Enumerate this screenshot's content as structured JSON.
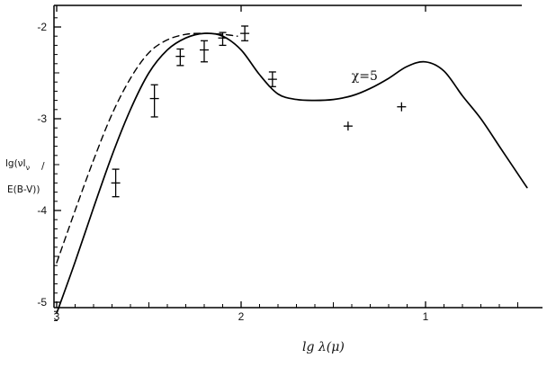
{
  "chart_data": {
    "type": "line",
    "title": "",
    "xlabel": "lg λ(μ)",
    "ylabel_lines": [
      "lg(νI",
      "/",
      "E(B-V))"
    ],
    "ylabel_subscript": "ν",
    "xlim": [
      3.0,
      0.45
    ],
    "ylim": [
      -5.2,
      -1.8
    ],
    "x_ticks": [
      3,
      2,
      1
    ],
    "y_ticks": [
      -2,
      -3,
      -4,
      -5
    ],
    "grid": false,
    "legend": "none",
    "annotation": {
      "text": "χ=5",
      "x": 1.33,
      "y": -2.58
    },
    "series": [
      {
        "style": "solid",
        "x": [
          3.0,
          2.9,
          2.8,
          2.7,
          2.6,
          2.5,
          2.4,
          2.3,
          2.2,
          2.1,
          2.0,
          1.9,
          1.8,
          1.7,
          1.6,
          1.5,
          1.4,
          1.3,
          1.2,
          1.1,
          1.0,
          0.9,
          0.8,
          0.7,
          0.6,
          0.5,
          0.45
        ],
        "y": [
          -5.12,
          -4.56,
          -3.97,
          -3.4,
          -2.9,
          -2.5,
          -2.25,
          -2.12,
          -2.07,
          -2.1,
          -2.25,
          -2.52,
          -2.73,
          -2.79,
          -2.8,
          -2.79,
          -2.75,
          -2.67,
          -2.56,
          -2.43,
          -2.38,
          -2.48,
          -2.75,
          -3.0,
          -3.3,
          -3.6,
          -3.75
        ]
      },
      {
        "style": "dashed",
        "x": [
          3.0,
          2.9,
          2.8,
          2.7,
          2.6,
          2.5,
          2.4,
          2.3,
          2.2,
          2.1,
          2.02
        ],
        "y": [
          -4.57,
          -4.0,
          -3.45,
          -2.95,
          -2.56,
          -2.28,
          -2.14,
          -2.08,
          -2.07,
          -2.08,
          -2.1
        ]
      }
    ],
    "points": [
      {
        "x": 2.68,
        "y": -3.7,
        "yerr_low": 0.15,
        "yerr_high": 0.15,
        "errorbar": true
      },
      {
        "x": 2.47,
        "y": -2.78,
        "yerr_low": 0.2,
        "yerr_high": 0.15,
        "errorbar": true
      },
      {
        "x": 2.33,
        "y": -2.32,
        "yerr_low": 0.1,
        "yerr_high": 0.08,
        "errorbar": true
      },
      {
        "x": 2.2,
        "y": -2.25,
        "yerr_low": 0.13,
        "yerr_high": 0.1,
        "errorbar": true
      },
      {
        "x": 2.1,
        "y": -2.12,
        "yerr_low": 0.08,
        "yerr_high": 0.06,
        "errorbar": true
      },
      {
        "x": 1.98,
        "y": -2.07,
        "yerr_low": 0.08,
        "yerr_high": 0.08,
        "errorbar": true
      },
      {
        "x": 1.83,
        "y": -2.57,
        "yerr_low": 0.08,
        "yerr_high": 0.08,
        "errorbar": true
      },
      {
        "x": 1.42,
        "y": -3.08,
        "errorbar": false
      },
      {
        "x": 1.13,
        "y": -2.87,
        "errorbar": false
      }
    ]
  }
}
